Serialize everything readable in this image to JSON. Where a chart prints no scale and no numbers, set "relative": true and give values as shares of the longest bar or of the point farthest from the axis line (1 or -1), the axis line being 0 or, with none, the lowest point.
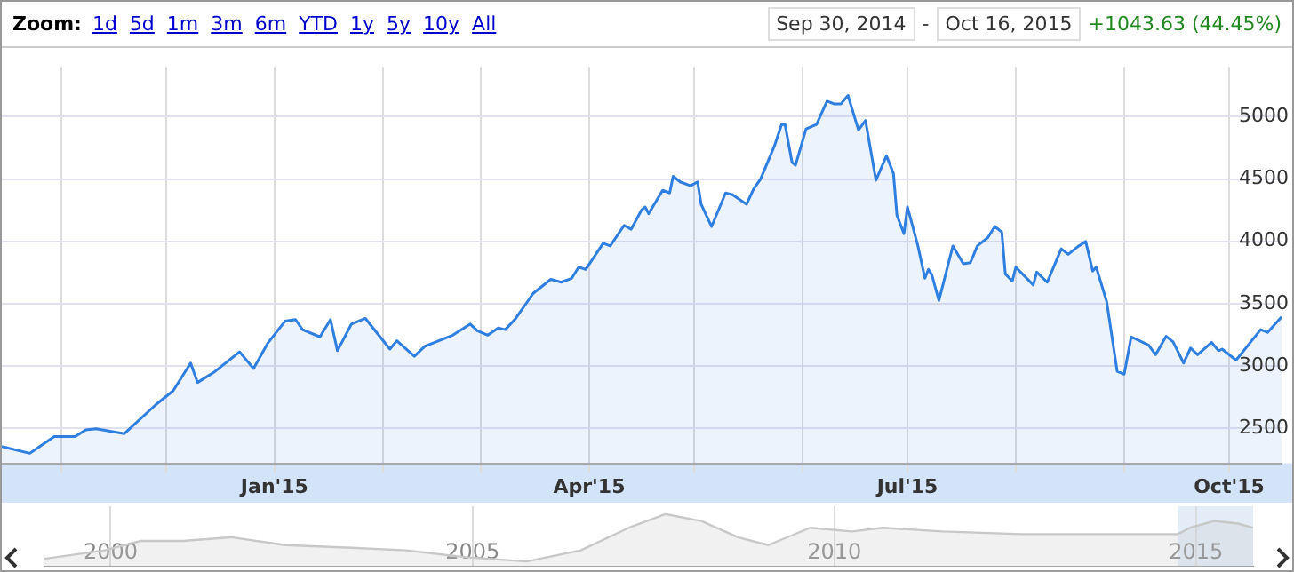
{
  "chart_data": [
    {
      "type": "area",
      "annotations": [
        "Zoom:",
        "1d",
        "5d",
        "1m",
        "3m",
        "6m",
        "YTD",
        "1y",
        "5y",
        "10y",
        "All",
        "Sep 30, 2014",
        "-",
        "Oct 16, 2015",
        "+1043.63 (44.45%)"
      ],
      "xlim": [
        "2014-10-15",
        "2015-10-16"
      ],
      "xticks": [
        {
          "value": "2014-11-01",
          "label": null
        },
        {
          "value": "2014-12-01",
          "label": null
        },
        {
          "value": "2015-01-01",
          "label": "Jan'15"
        },
        {
          "value": "2015-02-01",
          "label": null
        },
        {
          "value": "2015-03-01",
          "label": null
        },
        {
          "value": "2015-04-01",
          "label": "Apr'15"
        },
        {
          "value": "2015-05-01",
          "label": null
        },
        {
          "value": "2015-06-01",
          "label": null
        },
        {
          "value": "2015-07-01",
          "label": "Jul'15"
        },
        {
          "value": "2015-08-01",
          "label": null
        },
        {
          "value": "2015-09-01",
          "label": null
        },
        {
          "value": "2015-10-01",
          "label": "Oct'15"
        }
      ],
      "ylim": [
        2220,
        5400
      ],
      "yticks": [
        2500,
        3000,
        3500,
        4000,
        4500,
        5000
      ],
      "grid": true,
      "series": [
        {
          "color": "#2f7fe0",
          "x": [
            "2014-10-15",
            "2014-10-23",
            "2014-10-30",
            "2014-11-05",
            "2014-11-08",
            "2014-11-11",
            "2014-11-19",
            "2014-11-28",
            "2014-12-03",
            "2014-12-08",
            "2014-12-10",
            "2014-12-15",
            "2014-12-22",
            "2014-12-26",
            "2014-12-30",
            "2015-01-04",
            "2015-01-07",
            "2015-01-09",
            "2015-01-14",
            "2015-01-17",
            "2015-01-19",
            "2015-01-23",
            "2015-01-27",
            "2015-02-03",
            "2015-02-05",
            "2015-02-10",
            "2015-02-13",
            "2015-02-21",
            "2015-02-26",
            "2015-02-28",
            "2015-03-03",
            "2015-03-06",
            "2015-03-08",
            "2015-03-11",
            "2015-03-16",
            "2015-03-21",
            "2015-03-24",
            "2015-03-27",
            "2015-03-29",
            "2015-03-31",
            "2015-04-05",
            "2015-04-07",
            "2015-04-11",
            "2015-04-13",
            "2015-04-16",
            "2015-04-17",
            "2015-04-18",
            "2015-04-22",
            "2015-04-24",
            "2015-04-25",
            "2015-04-27",
            "2015-04-30",
            "2015-05-02",
            "2015-05-03",
            "2015-05-06",
            "2015-05-10",
            "2015-05-12",
            "2015-05-16",
            "2015-05-18",
            "2015-05-20",
            "2015-05-24",
            "2015-05-26",
            "2015-05-27",
            "2015-05-29",
            "2015-05-30",
            "2015-06-02",
            "2015-06-05",
            "2015-06-08",
            "2015-06-10",
            "2015-06-12",
            "2015-06-14",
            "2015-06-17",
            "2015-06-19",
            "2015-06-22",
            "2015-06-25",
            "2015-06-27",
            "2015-06-28",
            "2015-06-30",
            "2015-07-01",
            "2015-07-04",
            "2015-07-06",
            "2015-07-07",
            "2015-07-08",
            "2015-07-10",
            "2015-07-14",
            "2015-07-17",
            "2015-07-19",
            "2015-07-21",
            "2015-07-24",
            "2015-07-26",
            "2015-07-28",
            "2015-07-29",
            "2015-07-31",
            "2015-08-01",
            "2015-08-06",
            "2015-08-07",
            "2015-08-10",
            "2015-08-11",
            "2015-08-14",
            "2015-08-16",
            "2015-08-19",
            "2015-08-21",
            "2015-08-23",
            "2015-08-24",
            "2015-08-27",
            "2015-08-30",
            "2015-09-01",
            "2015-09-03",
            "2015-09-07",
            "2015-09-08",
            "2015-09-10",
            "2015-09-13",
            "2015-09-15",
            "2015-09-18",
            "2015-09-20",
            "2015-09-22",
            "2015-09-26",
            "2015-09-28",
            "2015-09-29",
            "2015-10-03",
            "2015-10-10",
            "2015-10-12",
            "2015-10-16"
          ],
          "values": [
            2354,
            2300,
            2434,
            2434,
            2488,
            2497,
            2457,
            2689,
            2801,
            3024,
            2868,
            2957,
            3114,
            2980,
            3181,
            3360,
            3373,
            3292,
            3234,
            3373,
            3123,
            3337,
            3382,
            3136,
            3203,
            3078,
            3158,
            3248,
            3337,
            3283,
            3248,
            3306,
            3292,
            3382,
            3583,
            3695,
            3672,
            3704,
            3793,
            3775,
            3985,
            3963,
            4128,
            4097,
            4253,
            4276,
            4222,
            4410,
            4388,
            4522,
            4477,
            4446,
            4477,
            4298,
            4119,
            4388,
            4374,
            4298,
            4419,
            4499,
            4768,
            4937,
            4937,
            4633,
            4611,
            4902,
            4937,
            5125,
            5103,
            5103,
            5170,
            4893,
            4969,
            4490,
            4687,
            4544,
            4209,
            4061,
            4276,
            3963,
            3704,
            3775,
            3730,
            3525,
            3963,
            3820,
            3829,
            3963,
            4030,
            4119,
            4074,
            3739,
            3681,
            3793,
            3650,
            3753,
            3672,
            3739,
            3940,
            3896,
            3963,
            3999,
            3762,
            3793,
            3516,
            2957,
            2935,
            3234,
            3181,
            3167,
            3091,
            3239,
            3194,
            3024,
            3145,
            3091,
            3190,
            3123,
            3136,
            3047,
            3292,
            3270,
            3395
          ]
        }
      ]
    },
    {
      "type": "area",
      "relative": true,
      "xlim": [
        "1999-02",
        "2015-10-16"
      ],
      "xticks": [
        {
          "value": "2000-01-01",
          "label": "2000"
        },
        {
          "value": "2005-01-01",
          "label": "2005"
        },
        {
          "value": "2010-01-01",
          "label": "2010"
        },
        {
          "value": "2015-01-01",
          "label": "2015"
        }
      ],
      "grid": "x",
      "bands": [
        {
          "axis": "x",
          "from": "2014-10",
          "to": "2015-10-16",
          "color": "#e3ecf7"
        }
      ],
      "series": [
        {
          "color": "#c8c8c8",
          "x": [
            "1999-02",
            "1999-12",
            "2000-06",
            "2001-01",
            "2001-09",
            "2002-06",
            "2003-05",
            "2004-02",
            "2004-12",
            "2005-10",
            "2006-07",
            "2007-03",
            "2007-09",
            "2008-03",
            "2008-09",
            "2009-02",
            "2009-09",
            "2010-04",
            "2010-09",
            "2011-07",
            "2012-08",
            "2013-09",
            "2014-10",
            "2014-12",
            "2015-04",
            "2015-08",
            "2015-10-16"
          ],
          "values": [
            0.15,
            0.31,
            0.49,
            0.49,
            0.56,
            0.41,
            0.36,
            0.31,
            0.18,
            0.1,
            0.31,
            0.74,
            1,
            0.87,
            0.56,
            0.41,
            0.74,
            0.67,
            0.74,
            0.67,
            0.62,
            0.62,
            0.62,
            0.74,
            0.87,
            0.82,
            0.74
          ]
        }
      ]
    }
  ]
}
